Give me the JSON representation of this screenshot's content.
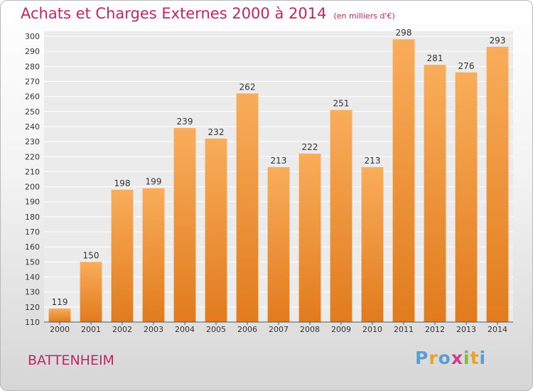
{
  "header": {
    "title": "Achats et Charges Externes 2000 à 2014",
    "unit": "(en milliers d'€)"
  },
  "footer": {
    "city": "BATTENHEIM",
    "brand": "Proxiti"
  },
  "colors": {
    "accent": "#c2265f",
    "bar_light": "#f9ad5a",
    "bar_dark": "#e17b1d",
    "brand_letters": [
      "#5a9fd4",
      "#e8a32b",
      "#5a9fd4",
      "#d63a8c",
      "#7dbb42",
      "#e8a32b",
      "#5a9fd4"
    ]
  },
  "chart_data": {
    "type": "bar",
    "categories": [
      "2000",
      "2001",
      "2002",
      "2003",
      "2004",
      "2005",
      "2006",
      "2007",
      "2008",
      "2009",
      "2010",
      "2011",
      "2012",
      "2013",
      "2014"
    ],
    "values": [
      119,
      150,
      198,
      199,
      239,
      232,
      262,
      213,
      222,
      251,
      213,
      298,
      281,
      276,
      293
    ],
    "ylim": [
      110,
      300
    ],
    "ytick_step": 10,
    "grid": true
  }
}
